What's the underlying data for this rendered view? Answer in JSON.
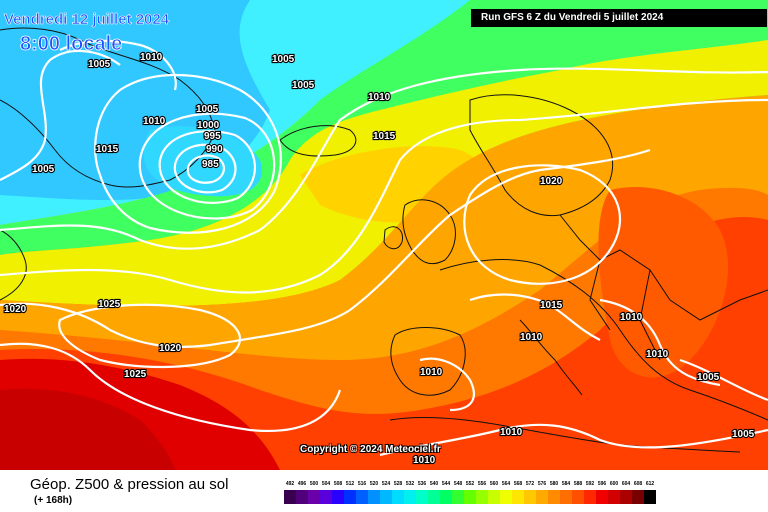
{
  "date_title": "Vendredi 12 juillet 2024",
  "time_title": "8:00 locale",
  "run_info": "Run GFS 6 Z du Vendredi 5 juillet 2024",
  "copyright": "Copyright © 2024 Meteociel.fr",
  "product_title": "Géop. Z500 & pression au sol",
  "lead_time": "(+ 168h)",
  "pressure_labels": [
    "1005",
    "1010",
    "1005",
    "1005",
    "1005",
    "1010",
    "1000",
    "995",
    "990",
    "985",
    "1015",
    "1005",
    "1010",
    "1015",
    "1020",
    "1020",
    "1025",
    "1020",
    "1025",
    "1015",
    "1010",
    "1010",
    "1010",
    "1010",
    "1010",
    "1005",
    "1010",
    "1005"
  ],
  "legend": {
    "values": [
      "492",
      "496",
      "500",
      "504",
      "508",
      "512",
      "516",
      "520",
      "524",
      "528",
      "532",
      "536",
      "540",
      "544",
      "548",
      "552",
      "556",
      "560",
      "564",
      "568",
      "572",
      "576",
      "580",
      "584",
      "588",
      "592",
      "596",
      "600",
      "604",
      "608",
      "612"
    ],
    "colors": [
      "#3a0050",
      "#50007a",
      "#6a00aa",
      "#5a00dc",
      "#2a00ff",
      "#0030ff",
      "#0060ff",
      "#0090ff",
      "#00b8ff",
      "#00dcff",
      "#00f0f0",
      "#00ffc8",
      "#00ff96",
      "#00ff64",
      "#32ff32",
      "#64ff00",
      "#96ff00",
      "#c8ff00",
      "#f0ff00",
      "#ffe600",
      "#ffc800",
      "#ffaa00",
      "#ff8c00",
      "#ff6e00",
      "#ff5000",
      "#ff2800",
      "#f00000",
      "#d20000",
      "#aa0000",
      "#780000",
      "#000000"
    ]
  }
}
